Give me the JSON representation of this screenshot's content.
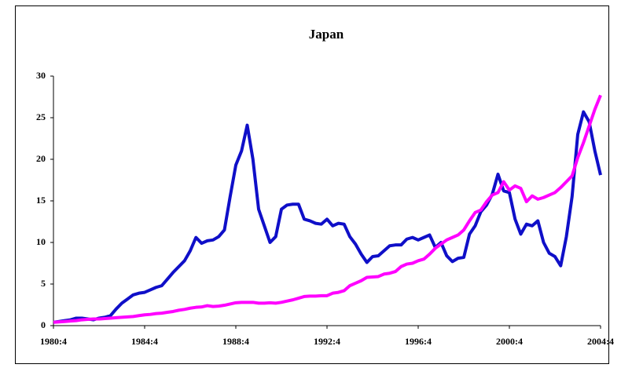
{
  "chart_data": {
    "type": "line",
    "title": "Japan",
    "categories": [
      "1980:4",
      null,
      null,
      null,
      null,
      null,
      null,
      null,
      null,
      null,
      null,
      null,
      null,
      null,
      null,
      null,
      "1984:4",
      null,
      null,
      null,
      null,
      null,
      null,
      null,
      null,
      null,
      null,
      null,
      null,
      null,
      null,
      null,
      "1988:4",
      null,
      null,
      null,
      null,
      null,
      null,
      null,
      null,
      null,
      null,
      null,
      null,
      null,
      null,
      null,
      "1992:4",
      null,
      null,
      null,
      null,
      null,
      null,
      null,
      null,
      null,
      null,
      null,
      null,
      null,
      null,
      null,
      "1996:4",
      null,
      null,
      null,
      null,
      null,
      null,
      null,
      null,
      null,
      null,
      null,
      null,
      null,
      null,
      null,
      "2000:4",
      null,
      null,
      null,
      null,
      null,
      null,
      null,
      null,
      null,
      null,
      null,
      null,
      null,
      null,
      null,
      "2004:4"
    ],
    "series": [
      {
        "color": "#0f0fc8",
        "values": [
          0.4,
          0.5,
          0.6,
          0.7,
          0.9,
          0.9,
          0.8,
          0.7,
          0.9,
          1.0,
          1.2,
          2.0,
          2.7,
          3.2,
          3.7,
          3.9,
          4.0,
          4.3,
          4.6,
          4.8,
          5.6,
          6.4,
          7.1,
          7.8,
          9.0,
          10.6,
          9.9,
          10.2,
          10.3,
          10.7,
          11.5,
          15.5,
          19.3,
          21.0,
          24.1,
          20.0,
          14.0,
          12.0,
          10.0,
          10.7,
          14.0,
          14.5,
          14.6,
          14.6,
          12.8,
          12.6,
          12.3,
          12.2,
          12.8,
          12.0,
          12.3,
          12.2,
          10.7,
          9.8,
          8.6,
          7.6,
          8.3,
          8.4,
          9.0,
          9.6,
          9.7,
          9.7,
          10.4,
          10.6,
          10.3,
          10.6,
          10.9,
          9.4,
          10.0,
          8.4,
          7.7,
          8.1,
          8.2,
          11.0,
          12.0,
          13.7,
          14.5,
          15.8,
          18.2,
          16.2,
          16.0,
          12.8,
          11.0,
          12.2,
          12.0,
          12.6,
          10.0,
          8.7,
          8.3,
          7.2,
          10.7,
          15.5,
          23.0,
          25.7,
          24.5,
          21.0,
          18.1
        ]
      },
      {
        "color": "#ff00ff",
        "values": [
          0.4,
          0.45,
          0.5,
          0.55,
          0.6,
          0.7,
          0.75,
          0.8,
          0.8,
          0.85,
          0.9,
          0.95,
          1.0,
          1.05,
          1.1,
          1.2,
          1.3,
          1.35,
          1.45,
          1.5,
          1.6,
          1.7,
          1.85,
          1.95,
          2.1,
          2.2,
          2.25,
          2.4,
          2.3,
          2.35,
          2.45,
          2.6,
          2.75,
          2.8,
          2.8,
          2.8,
          2.7,
          2.7,
          2.75,
          2.7,
          2.8,
          2.95,
          3.1,
          3.3,
          3.5,
          3.55,
          3.55,
          3.6,
          3.6,
          3.9,
          4.0,
          4.2,
          4.8,
          5.1,
          5.4,
          5.8,
          5.85,
          5.9,
          6.2,
          6.3,
          6.5,
          7.1,
          7.4,
          7.5,
          7.8,
          8.0,
          8.6,
          9.3,
          9.8,
          10.3,
          10.6,
          10.9,
          11.5,
          12.6,
          13.6,
          13.9,
          14.9,
          15.7,
          16.0,
          17.3,
          16.3,
          16.8,
          16.5,
          14.9,
          15.6,
          15.2,
          15.4,
          15.7,
          16.0,
          16.6,
          17.3,
          18.0,
          20.2,
          22.0,
          24.0,
          26.0,
          27.7
        ]
      }
    ],
    "ylim": [
      0,
      30
    ],
    "yticks": [
      0,
      5,
      10,
      15,
      20,
      25,
      30
    ],
    "grid": false
  }
}
